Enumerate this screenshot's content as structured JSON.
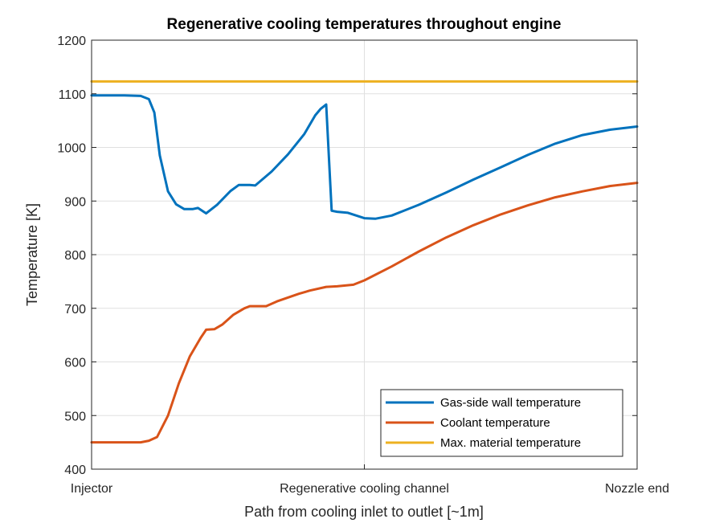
{
  "chart_data": {
    "type": "line",
    "title": "Regenerative cooling temperatures throughout engine",
    "xlabel": "Path from cooling inlet to outlet [~1m]",
    "ylabel": "Temperature [K]",
    "xlim": [
      0,
      1
    ],
    "ylim": [
      400,
      1200
    ],
    "x_ticks": [
      {
        "value": 0,
        "label": "Injector"
      },
      {
        "value": 0.5,
        "label": "Regenerative cooling channel"
      },
      {
        "value": 1,
        "label": "Nozzle end"
      }
    ],
    "y_ticks": [
      400,
      500,
      600,
      700,
      800,
      900,
      1000,
      1100,
      1200
    ],
    "grid": true,
    "legend_position": "bottom-right",
    "series": [
      {
        "name": "Gas-side wall temperature",
        "color": "#0072BD",
        "points": [
          [
            0,
            1097
          ],
          [
            0.03,
            1097
          ],
          [
            0.06,
            1097
          ],
          [
            0.09,
            1096
          ],
          [
            0.105,
            1090
          ],
          [
            0.115,
            1065
          ],
          [
            0.125,
            985
          ],
          [
            0.14,
            918
          ],
          [
            0.155,
            894
          ],
          [
            0.17,
            885
          ],
          [
            0.185,
            885
          ],
          [
            0.195,
            887
          ],
          [
            0.21,
            877
          ],
          [
            0.23,
            893
          ],
          [
            0.255,
            919
          ],
          [
            0.27,
            930
          ],
          [
            0.29,
            930
          ],
          [
            0.3,
            929
          ],
          [
            0.33,
            955
          ],
          [
            0.36,
            987
          ],
          [
            0.39,
            1025
          ],
          [
            0.41,
            1060
          ],
          [
            0.42,
            1072
          ],
          [
            0.43,
            1080
          ],
          [
            0.44,
            882
          ],
          [
            0.45,
            880
          ],
          [
            0.47,
            878
          ],
          [
            0.5,
            868
          ],
          [
            0.52,
            867
          ],
          [
            0.55,
            873
          ],
          [
            0.6,
            893
          ],
          [
            0.65,
            916
          ],
          [
            0.7,
            940
          ],
          [
            0.75,
            963
          ],
          [
            0.8,
            986
          ],
          [
            0.85,
            1007
          ],
          [
            0.9,
            1023
          ],
          [
            0.95,
            1033
          ],
          [
            1,
            1039
          ]
        ]
      },
      {
        "name": "Coolant temperature",
        "color": "#D95319",
        "points": [
          [
            0,
            450
          ],
          [
            0.03,
            450
          ],
          [
            0.06,
            450
          ],
          [
            0.09,
            450
          ],
          [
            0.105,
            453
          ],
          [
            0.12,
            460
          ],
          [
            0.14,
            500
          ],
          [
            0.16,
            560
          ],
          [
            0.18,
            610
          ],
          [
            0.2,
            645
          ],
          [
            0.21,
            660
          ],
          [
            0.225,
            661
          ],
          [
            0.24,
            670
          ],
          [
            0.26,
            688
          ],
          [
            0.28,
            700
          ],
          [
            0.29,
            704
          ],
          [
            0.32,
            704
          ],
          [
            0.34,
            713
          ],
          [
            0.38,
            727
          ],
          [
            0.4,
            733
          ],
          [
            0.43,
            740
          ],
          [
            0.45,
            741
          ],
          [
            0.48,
            744
          ],
          [
            0.5,
            752
          ],
          [
            0.55,
            778
          ],
          [
            0.6,
            806
          ],
          [
            0.65,
            832
          ],
          [
            0.7,
            855
          ],
          [
            0.75,
            875
          ],
          [
            0.8,
            892
          ],
          [
            0.85,
            907
          ],
          [
            0.9,
            918
          ],
          [
            0.95,
            928
          ],
          [
            1,
            934
          ]
        ]
      },
      {
        "name": "Max. material temperature",
        "color": "#EDB120",
        "points": [
          [
            0,
            1123
          ],
          [
            1,
            1123
          ]
        ]
      }
    ]
  }
}
